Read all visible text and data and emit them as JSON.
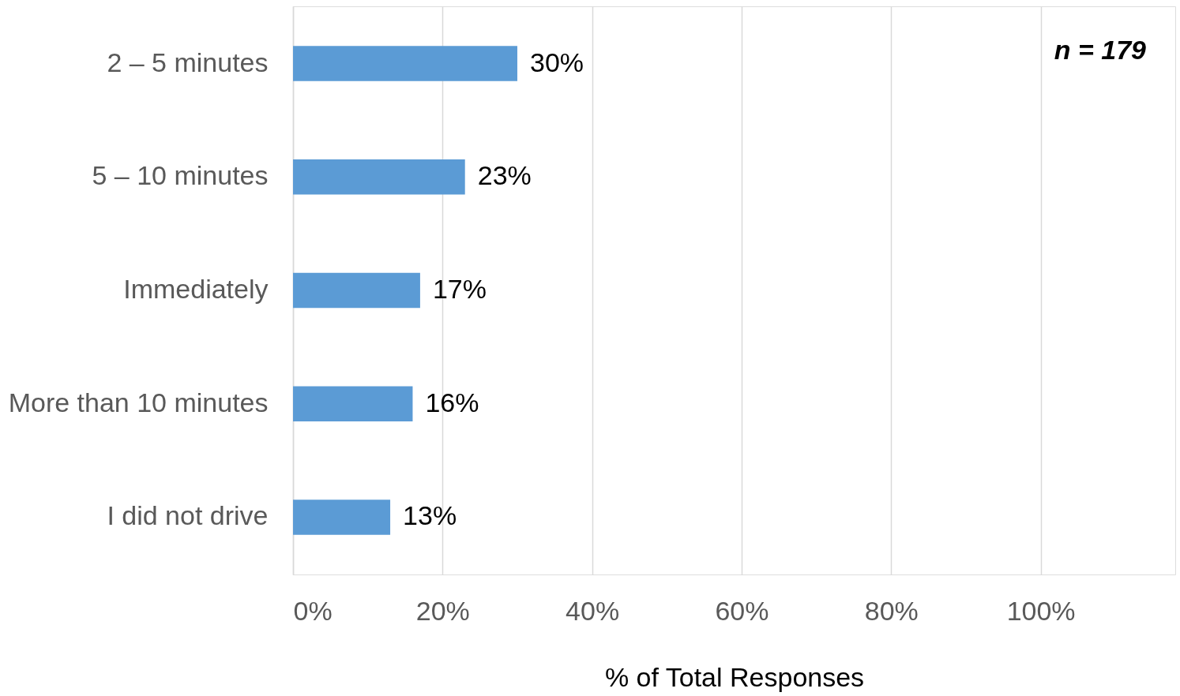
{
  "chart_data": {
    "type": "bar",
    "orientation": "horizontal",
    "categories": [
      "2 – 5 minutes",
      "5 – 10 minutes",
      "Immediately",
      "More than 10 minutes",
      "I did not drive"
    ],
    "values": [
      30,
      23,
      17,
      16,
      13
    ],
    "value_labels": [
      "30%",
      "23%",
      "17%",
      "16%",
      "13%"
    ],
    "color": "#5b9bd5",
    "xlabel": "% of Total Responses",
    "xlim": [
      0,
      118
    ],
    "xticks": [
      {
        "value": 0,
        "label": "0%"
      },
      {
        "value": 20,
        "label": "20%"
      },
      {
        "value": 40,
        "label": "40%"
      },
      {
        "value": 60,
        "label": "60%"
      },
      {
        "value": 80,
        "label": "80%"
      },
      {
        "value": 100,
        "label": "100%"
      }
    ],
    "grid": "x",
    "annotations": [
      "n = 179"
    ]
  }
}
